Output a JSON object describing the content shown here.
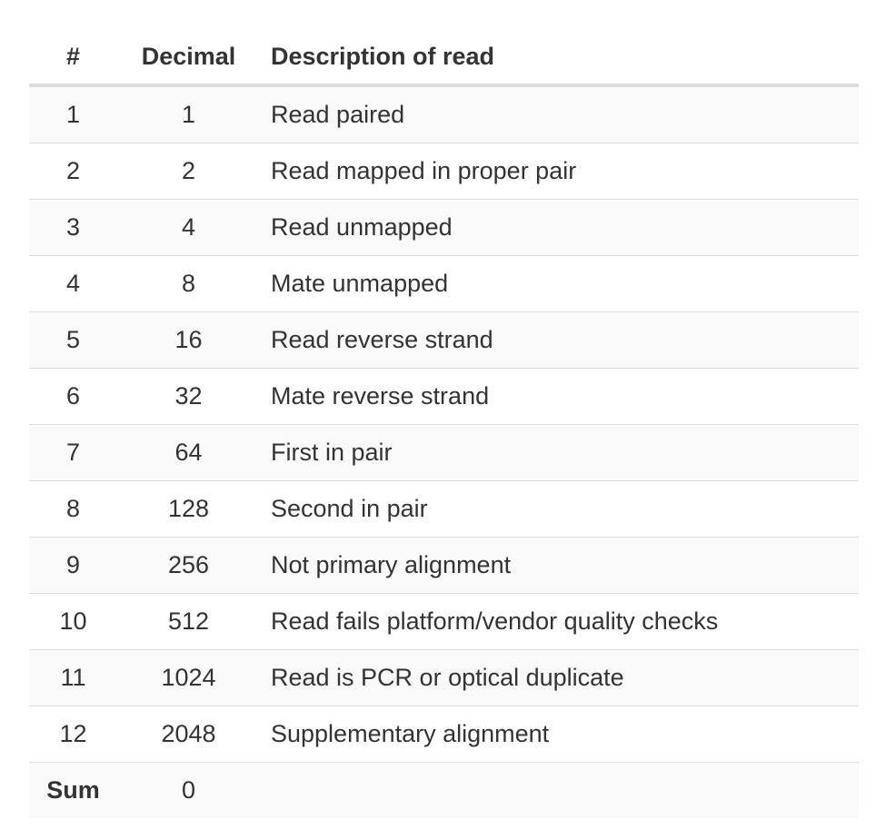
{
  "table": {
    "headers": {
      "num": "#",
      "decimal": "Decimal",
      "description": "Description of read"
    },
    "rows": [
      {
        "num": "1",
        "decimal": "1",
        "description": "Read paired"
      },
      {
        "num": "2",
        "decimal": "2",
        "description": "Read mapped in proper pair"
      },
      {
        "num": "3",
        "decimal": "4",
        "description": "Read unmapped"
      },
      {
        "num": "4",
        "decimal": "8",
        "description": "Mate unmapped"
      },
      {
        "num": "5",
        "decimal": "16",
        "description": "Read reverse strand"
      },
      {
        "num": "6",
        "decimal": "32",
        "description": "Mate reverse strand"
      },
      {
        "num": "7",
        "decimal": "64",
        "description": "First in pair"
      },
      {
        "num": "8",
        "decimal": "128",
        "description": "Second in pair"
      },
      {
        "num": "9",
        "decimal": "256",
        "description": "Not primary alignment"
      },
      {
        "num": "10",
        "decimal": "512",
        "description": "Read fails platform/vendor quality checks"
      },
      {
        "num": "11",
        "decimal": "1024",
        "description": "Read is PCR or optical duplicate"
      },
      {
        "num": "12",
        "decimal": "2048",
        "description": "Supplementary alignment"
      }
    ],
    "sum": {
      "label": "Sum",
      "value": "0"
    }
  },
  "colors": {
    "text": "#333333",
    "border": "#dddddd",
    "stripe": "#f9f9f9"
  }
}
